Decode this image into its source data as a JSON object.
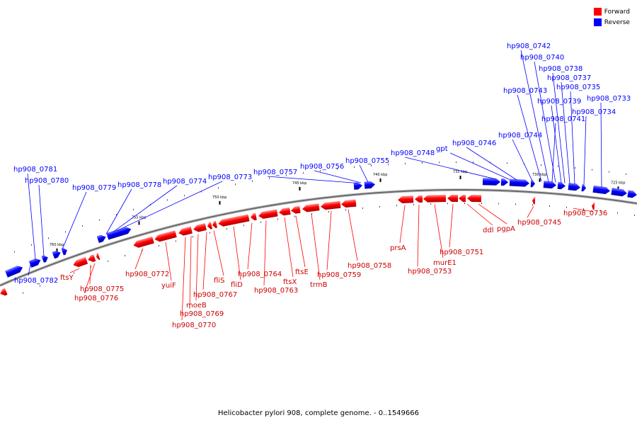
{
  "legend": {
    "forward_label": "Forward",
    "reverse_label": "Reverse",
    "forward_color": "#ff0000",
    "reverse_color": "#0000ff"
  },
  "caption": "Helicobacter pylori 908, complete genome. - 0..1549666",
  "scale_ticks": [
    "760 kbp",
    "755 kbp",
    "750 kbp",
    "745 kbp",
    "740 kbp",
    "735 kbp",
    "730 kbp",
    "725 kbp"
  ],
  "forward_genes": [
    "ftsY",
    "hp908_0775",
    "hp908_0776",
    "hp908_0772",
    "yuiF",
    "hp908_0770",
    "hp908_0769",
    "moeB",
    "hp908_0767",
    "fliS",
    "fliD",
    "hp908_0764",
    "hp908_0763",
    "ftsX",
    "ftsE",
    "trmB",
    "hp908_0759",
    "hp908_0758",
    "prsA",
    "hp908_0753",
    "murE1",
    "hp908_0751",
    "ddl",
    "pgpA",
    "hp908_0745",
    "hp908_0736"
  ],
  "reverse_genes": [
    "hp908_0782",
    "hp908_0781",
    "hp908_0780",
    "hp908_0779",
    "hp908_0778",
    "hp908_0774",
    "hp908_0773",
    "hp908_0757",
    "hp908_0756",
    "hp908_0755",
    "hp908_0748",
    "gpt",
    "hp908_0746",
    "hp908_0744",
    "hp908_0743",
    "hp908_0742",
    "hp908_0741",
    "hp908_0740",
    "hp908_0739",
    "hp908_0738",
    "hp908_0737",
    "hp908_0735",
    "hp908_0734",
    "hp908_0733"
  ]
}
